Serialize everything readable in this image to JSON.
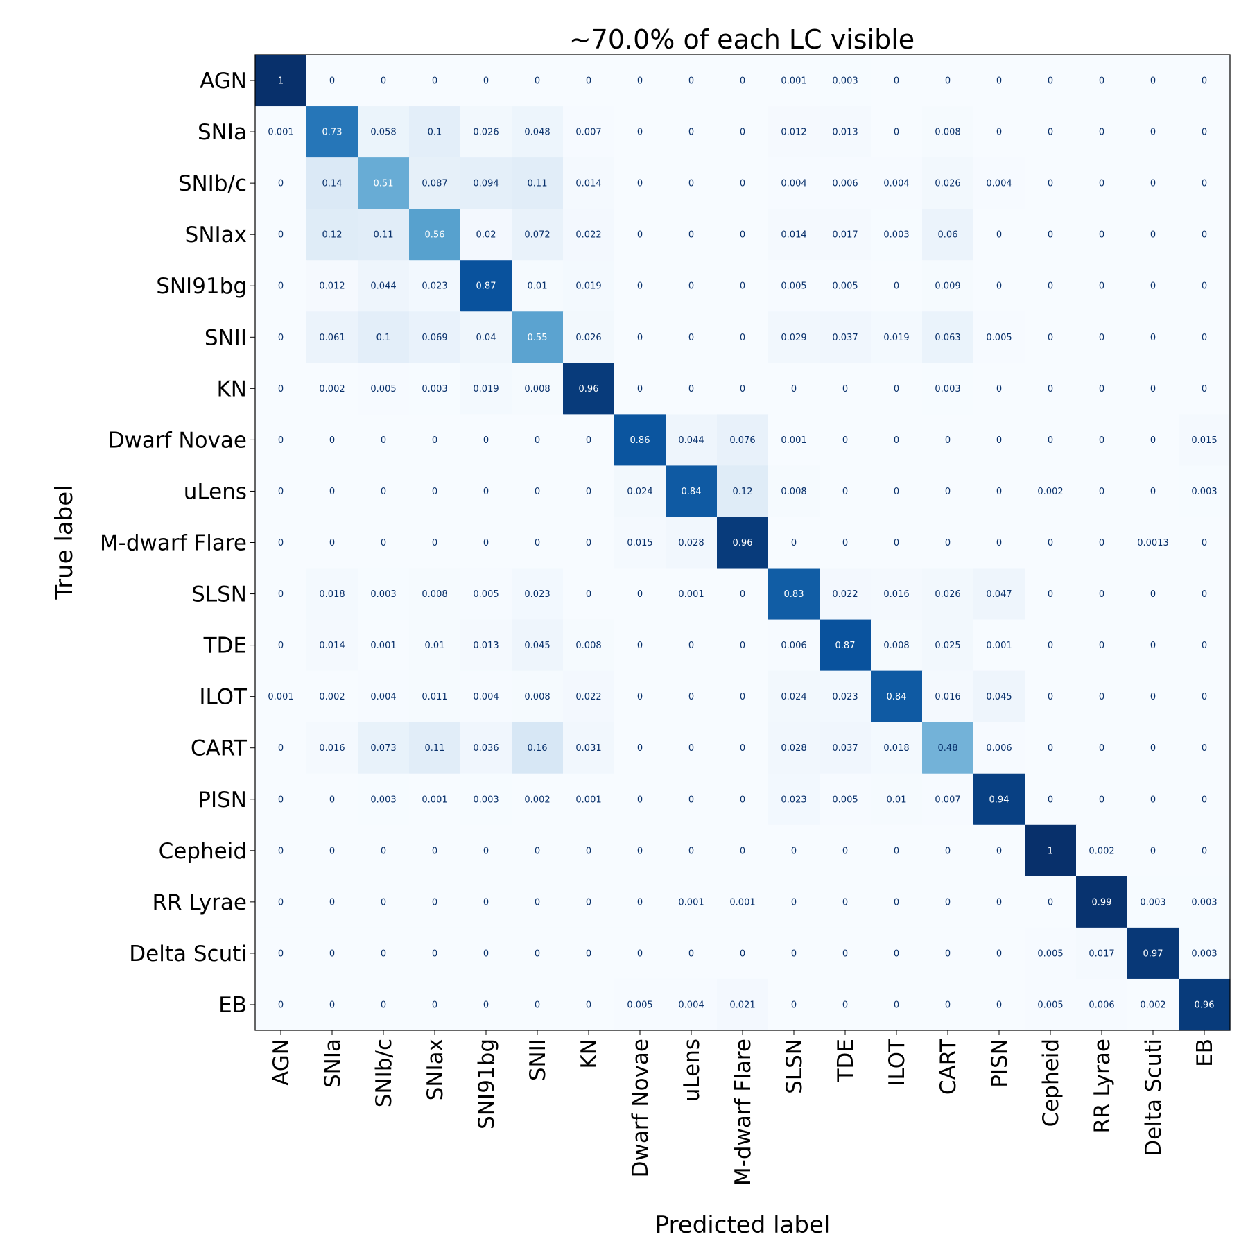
{
  "chart_data": {
    "type": "heatmap",
    "title": "~70.0% of each LC visible",
    "xlabel": "Predicted label",
    "ylabel": "True label",
    "colormap": "Blues",
    "value_range": [
      0,
      1
    ],
    "x_categories": [
      "AGN",
      "SNIa",
      "SNIb/c",
      "SNIax",
      "SNI91bg",
      "SNII",
      "KN",
      "Dwarf Novae",
      "uLens",
      "M-dwarf Flare",
      "SLSN",
      "TDE",
      "ILOT",
      "CART",
      "PISN",
      "Cepheid",
      "RR Lyrae",
      "Delta Scuti",
      "EB"
    ],
    "y_categories": [
      "AGN",
      "SNIa",
      "SNIb/c",
      "SNIax",
      "SNI91bg",
      "SNII",
      "KN",
      "Dwarf Novae",
      "uLens",
      "M-dwarf Flare",
      "SLSN",
      "TDE",
      "ILOT",
      "CART",
      "PISN",
      "Cepheid",
      "RR Lyrae",
      "Delta Scuti",
      "EB"
    ],
    "matrix": [
      [
        "1",
        "0",
        "0",
        "0",
        "0",
        "0",
        "0",
        "0",
        "0",
        "0",
        "0.001",
        "0.003",
        "0",
        "0",
        "0",
        "0",
        "0",
        "0",
        "0"
      ],
      [
        "0.001",
        "0.73",
        "0.058",
        "0.1",
        "0.026",
        "0.048",
        "0.007",
        "0",
        "0",
        "0",
        "0.012",
        "0.013",
        "0",
        "0.008",
        "0",
        "0",
        "0",
        "0",
        "0"
      ],
      [
        "0",
        "0.14",
        "0.51",
        "0.087",
        "0.094",
        "0.11",
        "0.014",
        "0",
        "0",
        "0",
        "0.004",
        "0.006",
        "0.004",
        "0.026",
        "0.004",
        "0",
        "0",
        "0",
        "0"
      ],
      [
        "0",
        "0.12",
        "0.11",
        "0.56",
        "0.02",
        "0.072",
        "0.022",
        "0",
        "0",
        "0",
        "0.014",
        "0.017",
        "0.003",
        "0.06",
        "0",
        "0",
        "0",
        "0",
        "0"
      ],
      [
        "0",
        "0.012",
        "0.044",
        "0.023",
        "0.87",
        "0.01",
        "0.019",
        "0",
        "0",
        "0",
        "0.005",
        "0.005",
        "0",
        "0.009",
        "0",
        "0",
        "0",
        "0",
        "0"
      ],
      [
        "0",
        "0.061",
        "0.1",
        "0.069",
        "0.04",
        "0.55",
        "0.026",
        "0",
        "0",
        "0",
        "0.029",
        "0.037",
        "0.019",
        "0.063",
        "0.005",
        "0",
        "0",
        "0",
        "0"
      ],
      [
        "0",
        "0.002",
        "0.005",
        "0.003",
        "0.019",
        "0.008",
        "0.96",
        "0",
        "0",
        "0",
        "0",
        "0",
        "0",
        "0.003",
        "0",
        "0",
        "0",
        "0",
        "0"
      ],
      [
        "0",
        "0",
        "0",
        "0",
        "0",
        "0",
        "0",
        "0.86",
        "0.044",
        "0.076",
        "0.001",
        "0",
        "0",
        "0",
        "0",
        "0",
        "0",
        "0",
        "0.015"
      ],
      [
        "0",
        "0",
        "0",
        "0",
        "0",
        "0",
        "0",
        "0.024",
        "0.84",
        "0.12",
        "0.008",
        "0",
        "0",
        "0",
        "0",
        "0.002",
        "0",
        "0",
        "0.003"
      ],
      [
        "0",
        "0",
        "0",
        "0",
        "0",
        "0",
        "0",
        "0.015",
        "0.028",
        "0.96",
        "0",
        "0",
        "0",
        "0",
        "0",
        "0",
        "0",
        "0.0013",
        "0"
      ],
      [
        "0",
        "0.018",
        "0.003",
        "0.008",
        "0.005",
        "0.023",
        "0",
        "0",
        "0.001",
        "0",
        "0.83",
        "0.022",
        "0.016",
        "0.026",
        "0.047",
        "0",
        "0",
        "0",
        "0"
      ],
      [
        "0",
        "0.014",
        "0.001",
        "0.01",
        "0.013",
        "0.045",
        "0.008",
        "0",
        "0",
        "0",
        "0.006",
        "0.87",
        "0.008",
        "0.025",
        "0.001",
        "0",
        "0",
        "0",
        "0"
      ],
      [
        "0.001",
        "0.002",
        "0.004",
        "0.011",
        "0.004",
        "0.008",
        "0.022",
        "0",
        "0",
        "0",
        "0.024",
        "0.023",
        "0.84",
        "0.016",
        "0.045",
        "0",
        "0",
        "0",
        "0"
      ],
      [
        "0",
        "0.016",
        "0.073",
        "0.11",
        "0.036",
        "0.16",
        "0.031",
        "0",
        "0",
        "0",
        "0.028",
        "0.037",
        "0.018",
        "0.48",
        "0.006",
        "0",
        "0",
        "0",
        "0"
      ],
      [
        "0",
        "0",
        "0.003",
        "0.001",
        "0.003",
        "0.002",
        "0.001",
        "0",
        "0",
        "0",
        "0.023",
        "0.005",
        "0.01",
        "0.007",
        "0.94",
        "0",
        "0",
        "0",
        "0"
      ],
      [
        "0",
        "0",
        "0",
        "0",
        "0",
        "0",
        "0",
        "0",
        "0",
        "0",
        "0",
        "0",
        "0",
        "0",
        "0",
        "1",
        "0.002",
        "0",
        "0"
      ],
      [
        "0",
        "0",
        "0",
        "0",
        "0",
        "0",
        "0",
        "0",
        "0.001",
        "0.001",
        "0",
        "0",
        "0",
        "0",
        "0",
        "0",
        "0.99",
        "0.003",
        "0.003"
      ],
      [
        "0",
        "0",
        "0",
        "0",
        "0",
        "0",
        "0",
        "0",
        "0",
        "0",
        "0",
        "0",
        "0",
        "0",
        "0",
        "0.005",
        "0.017",
        "0.97",
        "0.003"
      ],
      [
        "0",
        "0",
        "0",
        "0",
        "0",
        "0",
        "0",
        "0.005",
        "0.004",
        "0.021",
        "0",
        "0",
        "0",
        "0",
        "0",
        "0.005",
        "0.006",
        "0.002",
        "0.96"
      ]
    ]
  }
}
